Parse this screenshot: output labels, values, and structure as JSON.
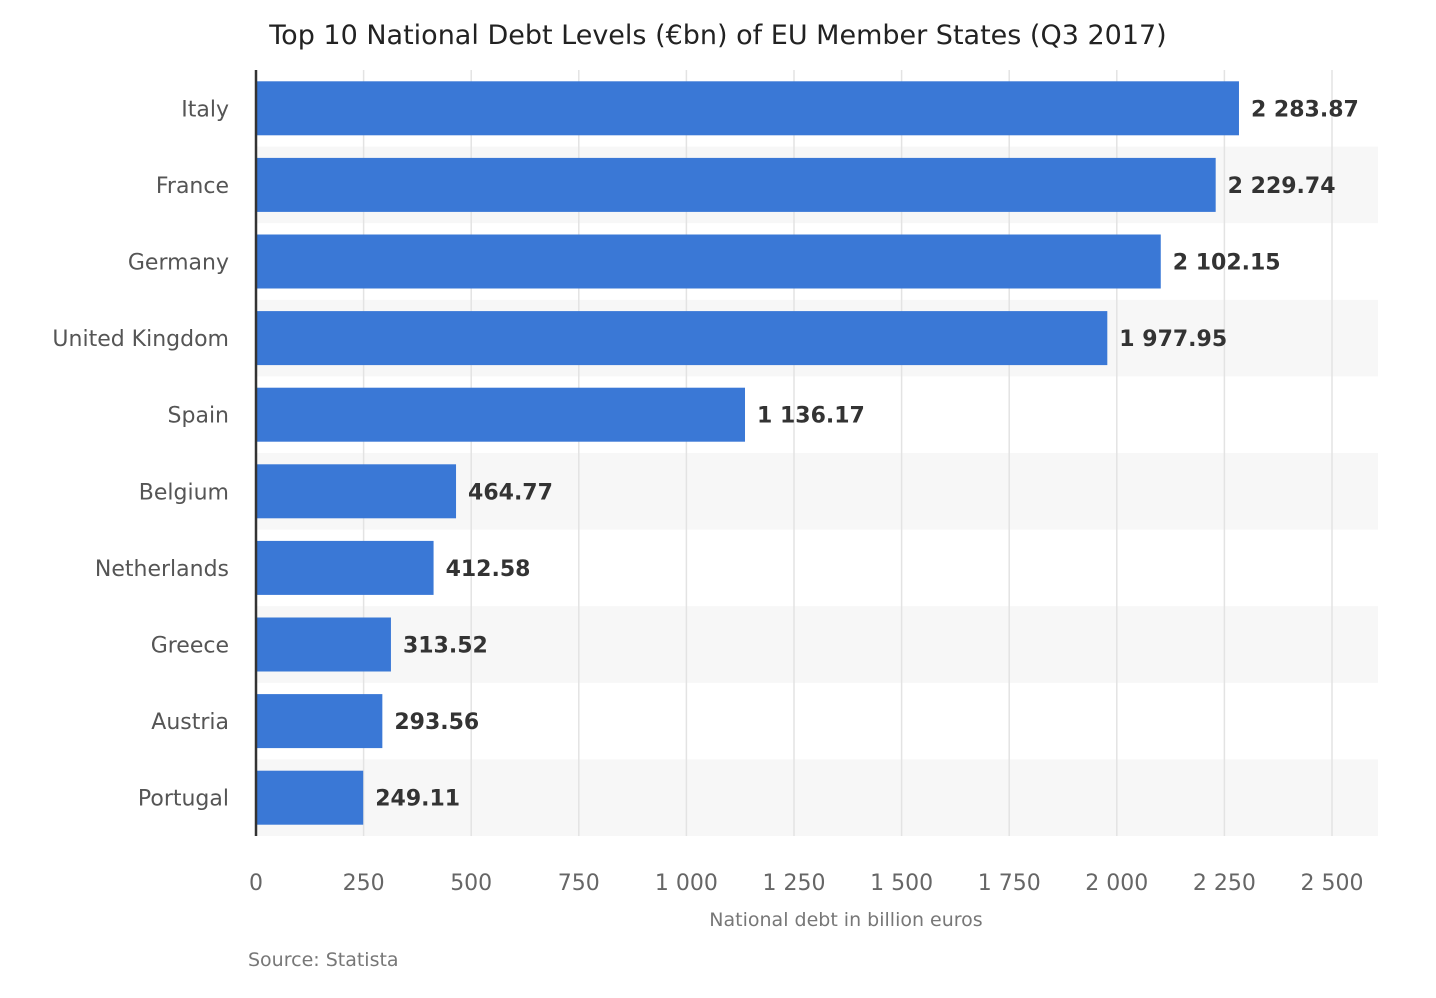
{
  "chart_data": {
    "type": "bar",
    "orientation": "horizontal",
    "title": "Top 10 National Debt Levels (€bn) of EU Member States (Q3 2017)",
    "xlabel": "National debt in billion euros",
    "source": "Source: Statista",
    "categories": [
      "Italy",
      "France",
      "Germany",
      "United Kingdom",
      "Spain",
      "Belgium",
      "Netherlands",
      "Greece",
      "Austria",
      "Portugal"
    ],
    "values": [
      2283.87,
      2229.74,
      2102.15,
      1977.95,
      1136.17,
      464.77,
      412.58,
      313.52,
      293.56,
      249.11
    ],
    "value_labels": [
      "2 283.87",
      "2 229.74",
      "2 102.15",
      "1 977.95",
      "1 136.17",
      "464.77",
      "412.58",
      "313.52",
      "293.56",
      "249.11"
    ],
    "xlim": [
      0,
      2500
    ],
    "ticks": [
      0,
      250,
      500,
      750,
      1000,
      1250,
      1500,
      1750,
      2000,
      2250,
      2500
    ],
    "tick_labels": [
      "0",
      "250",
      "500",
      "750",
      "1 000",
      "1 250",
      "1 500",
      "1 750",
      "2 000",
      "2 250",
      "2 500"
    ],
    "grid": true,
    "colors": {
      "bar": "#3a78d6",
      "grid": "#e3e3e3",
      "band": "#f7f7f7",
      "axis": "#333333"
    }
  }
}
